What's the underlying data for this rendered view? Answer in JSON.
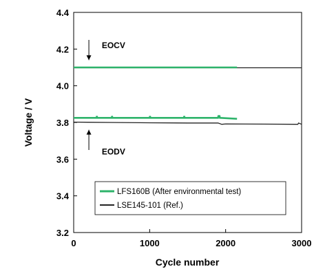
{
  "chart_data": {
    "type": "line",
    "xlabel": "Cycle number",
    "ylabel": "Voltage / V",
    "xlim": [
      0,
      3000
    ],
    "ylim": [
      3.2,
      4.4
    ],
    "xticks": [
      "0",
      "1000",
      "2000",
      "3000"
    ],
    "yticks": [
      "3.2",
      "3.4",
      "3.6",
      "3.8",
      "4.0",
      "4.2",
      "4.4"
    ],
    "grid": false,
    "legend_position": "bottom-center",
    "series": [
      {
        "name": "LFS160B (After environmental test)",
        "color": "#2db36a",
        "groups": [
          {
            "x": [
              0,
              2150
            ],
            "y": [
              4.1,
              4.1
            ]
          },
          {
            "x": [
              0,
              300,
              305,
              310,
              500,
              505,
              510,
              1000,
              1005,
              1010,
              1450,
              1455,
              1460,
              1900,
              1905,
              1920,
              1925,
              1930,
              2150
            ],
            "y": [
              3.825,
              3.825,
              3.835,
              3.825,
              3.825,
              3.835,
              3.825,
              3.825,
              3.835,
              3.825,
              3.825,
              3.835,
              3.825,
              3.825,
              3.835,
              3.835,
              3.825,
              3.825,
              3.82
            ]
          }
        ]
      },
      {
        "name": "LSE145-101 (Ref.)",
        "color": "#222222",
        "groups": [
          {
            "x": [
              0,
              3000
            ],
            "y": [
              4.098,
              4.098
            ]
          },
          {
            "x": [
              0,
              500,
              1000,
              1500,
              1900,
              1950,
              2000,
              2500,
              2950,
              2960,
              3000
            ],
            "y": [
              3.802,
              3.8,
              3.798,
              3.797,
              3.797,
              3.79,
              3.792,
              3.791,
              3.79,
              3.797,
              3.79
            ]
          }
        ]
      }
    ],
    "annotations": [
      {
        "text": "EOCV",
        "x": 370,
        "y": 4.22,
        "arrow": "down",
        "arrow_x": 200,
        "arrow_from": 4.25,
        "arrow_to": 4.14
      },
      {
        "text": "EODV",
        "x": 370,
        "y": 3.64,
        "arrow": "up",
        "arrow_x": 200,
        "arrow_from": 3.65,
        "arrow_to": 3.76
      }
    ]
  }
}
